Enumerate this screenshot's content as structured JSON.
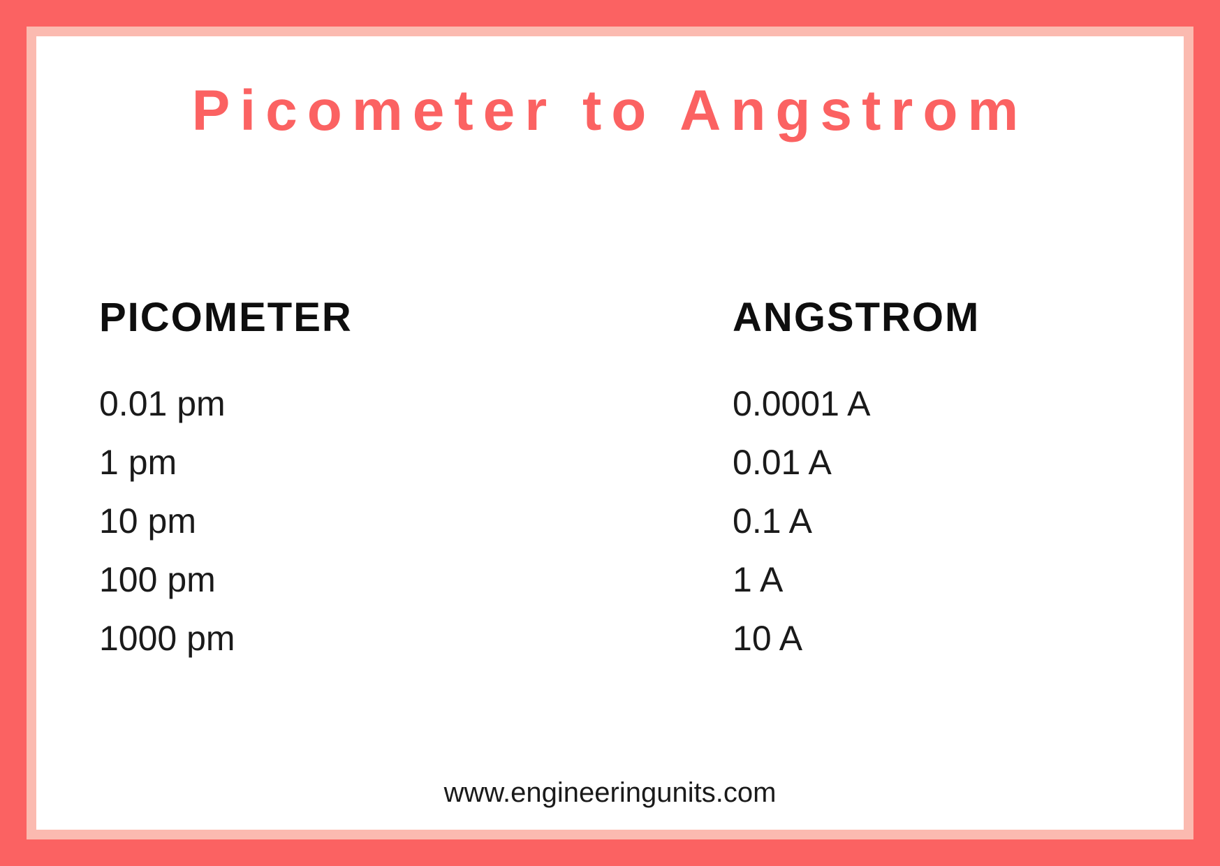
{
  "title": "Picometer to Angstrom",
  "table": {
    "columns": [
      "PICOMETER",
      "ANGSTROM"
    ],
    "rows": [
      [
        "0.01 pm",
        "0.0001 A"
      ],
      [
        "1 pm",
        "0.01 A"
      ],
      [
        "10 pm",
        "0.1 A"
      ],
      [
        "100 pm",
        "1 A"
      ],
      [
        "1000 pm",
        "10 A"
      ]
    ]
  },
  "footer": "www.engineeringunits.com",
  "colors": {
    "outer_border": "#fb6262",
    "inner_border": "#fbbab0",
    "background": "#ffffff",
    "title_color": "#fb6262",
    "header_color": "#0e0e0e",
    "value_color": "#1a1a1a",
    "footer_color": "#1a1a1a"
  },
  "typography": {
    "title_fontsize": 82,
    "title_weight": 700,
    "title_letterspacing": 14,
    "header_fontsize": 58,
    "header_weight": 800,
    "value_fontsize": 50,
    "value_weight": 400,
    "footer_fontsize": 40
  },
  "layout": {
    "outer_padding": 38,
    "inner_padding": 14,
    "left_column_width_percent": 62,
    "right_column_width_percent": 38
  }
}
